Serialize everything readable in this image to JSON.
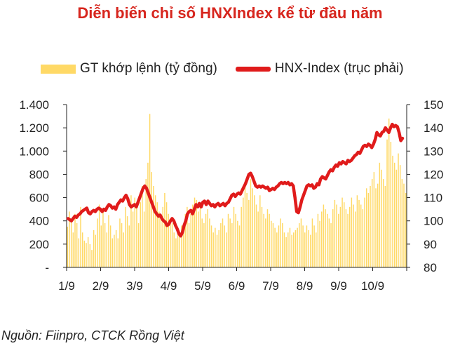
{
  "chart_data": {
    "type": "bar+line",
    "title": "Diễn biến chỉ số HNXIndex kể từ đầu năm",
    "source": "Nguồn: Fiinpro, CTCK Rồng Việt",
    "x_ticks": [
      "1/9",
      "2/9",
      "3/9",
      "4/9",
      "5/9",
      "6/9",
      "7/9",
      "8/9",
      "9/9",
      "10/9"
    ],
    "y_left": {
      "ticks": [
        "-",
        "200",
        "400",
        "600",
        "800",
        "1.000",
        "1.200",
        "1.400"
      ],
      "range": [
        0,
        1400
      ]
    },
    "y_right": {
      "ticks": [
        "80",
        "90",
        "100",
        "110",
        "120",
        "130",
        "140",
        "150"
      ],
      "range": [
        80,
        150
      ]
    },
    "series": [
      {
        "name": "GT khớp lệnh (tỷ đồng)",
        "type": "bar",
        "axis": "left",
        "color": "#ffd966",
        "values": [
          350,
          480,
          420,
          300,
          460,
          380,
          250,
          520,
          300,
          230,
          210,
          260,
          200,
          150,
          320,
          280,
          420,
          540,
          360,
          480,
          380,
          300,
          450,
          360,
          250,
          280,
          320,
          250,
          420,
          380,
          300,
          520,
          440,
          360,
          620,
          480,
          600,
          520,
          380,
          560,
          700,
          480,
          760,
          900,
          1320,
          820,
          700,
          620,
          560,
          480,
          420,
          520,
          640,
          560,
          460,
          420,
          380,
          300,
          250,
          320,
          280,
          360,
          300,
          460,
          520,
          380,
          460,
          540,
          600,
          580,
          480,
          540,
          420,
          380,
          460,
          500,
          420,
          360,
          300,
          340,
          280,
          320,
          380,
          420,
          360,
          300,
          460,
          420,
          380,
          520,
          460,
          400,
          360,
          520,
          600,
          700,
          640,
          580,
          760,
          680,
          620,
          540,
          480,
          620,
          520,
          460,
          420,
          500,
          460,
          400,
          380,
          340,
          300,
          360,
          420,
          380,
          300,
          260,
          300,
          340,
          280,
          300,
          320,
          340,
          380,
          420,
          360,
          300,
          360,
          320,
          280,
          420,
          360,
          300,
          460,
          400,
          480,
          540,
          500,
          460,
          420,
          380,
          500,
          580,
          540,
          460,
          520,
          600,
          560,
          500,
          460,
          520,
          600,
          540,
          480,
          620,
          580,
          540,
          500,
          600,
          680,
          640,
          700,
          760,
          820,
          680,
          720,
          900,
          840,
          760,
          700,
          1100,
          1280,
          1080,
          960,
          900,
          840,
          980,
          880,
          760,
          720,
          640
        ]
      },
      {
        "name": "HNX-Index (trục phải)",
        "type": "line",
        "axis": "right",
        "color": "#e01b1b",
        "values": [
          101,
          100.5,
          100,
          101,
          102,
          101.5,
          102.5,
          103,
          104,
          104.5,
          105,
          105.5,
          103.5,
          103,
          104,
          104.5,
          104,
          105,
          105.5,
          105,
          104,
          105,
          104.5,
          106,
          107,
          106.5,
          105.5,
          106,
          105,
          107,
          108,
          109,
          108.5,
          110,
          111,
          109.5,
          107,
          106,
          106.5,
          107,
          106,
          108,
          110,
          112,
          114,
          115,
          114,
          112,
          110,
          108,
          106,
          104,
          103,
          102,
          102.5,
          101,
          100,
          99.5,
          98,
          98.5,
          100,
          101,
          100,
          98,
          96.5,
          94.5,
          93.5,
          95,
          98,
          100,
          103,
          104,
          104.5,
          103,
          105,
          107,
          106,
          107.5,
          106,
          108,
          108.5,
          107,
          108.5,
          107.5,
          106.5,
          107,
          106,
          107,
          107.5,
          106.5,
          107,
          107.5,
          106.5,
          107.5,
          108,
          109.5,
          111,
          111.5,
          110.5,
          111.5,
          112,
          111.5,
          113,
          114.5,
          116,
          118,
          120,
          120.5,
          119,
          117,
          115,
          114.5,
          115,
          114.5,
          115,
          114.5,
          114,
          114.5,
          113,
          113.5,
          114,
          113.5,
          114.5,
          115,
          116,
          116.5,
          116,
          116.5,
          116,
          116.5,
          115.5,
          116,
          115,
          110,
          104,
          103.5,
          106,
          109,
          111,
          113,
          115,
          115.5,
          115,
          115.5,
          114,
          114.5,
          116,
          115.5,
          118,
          119,
          118.5,
          118,
          119.5,
          121,
          122,
          121.5,
          123,
          124,
          123.5,
          125,
          124.5,
          125.5,
          125,
          124.5,
          126,
          125.5,
          126,
          127,
          128,
          128.5,
          129.5,
          129,
          130.5,
          132,
          132.5,
          132,
          133,
          132.5,
          131.5,
          133,
          135,
          138,
          137,
          136.5,
          138,
          138.5,
          140,
          139,
          138,
          140,
          141.5,
          140.5,
          141,
          140.5,
          138,
          134.5,
          135.5
        ]
      }
    ]
  }
}
